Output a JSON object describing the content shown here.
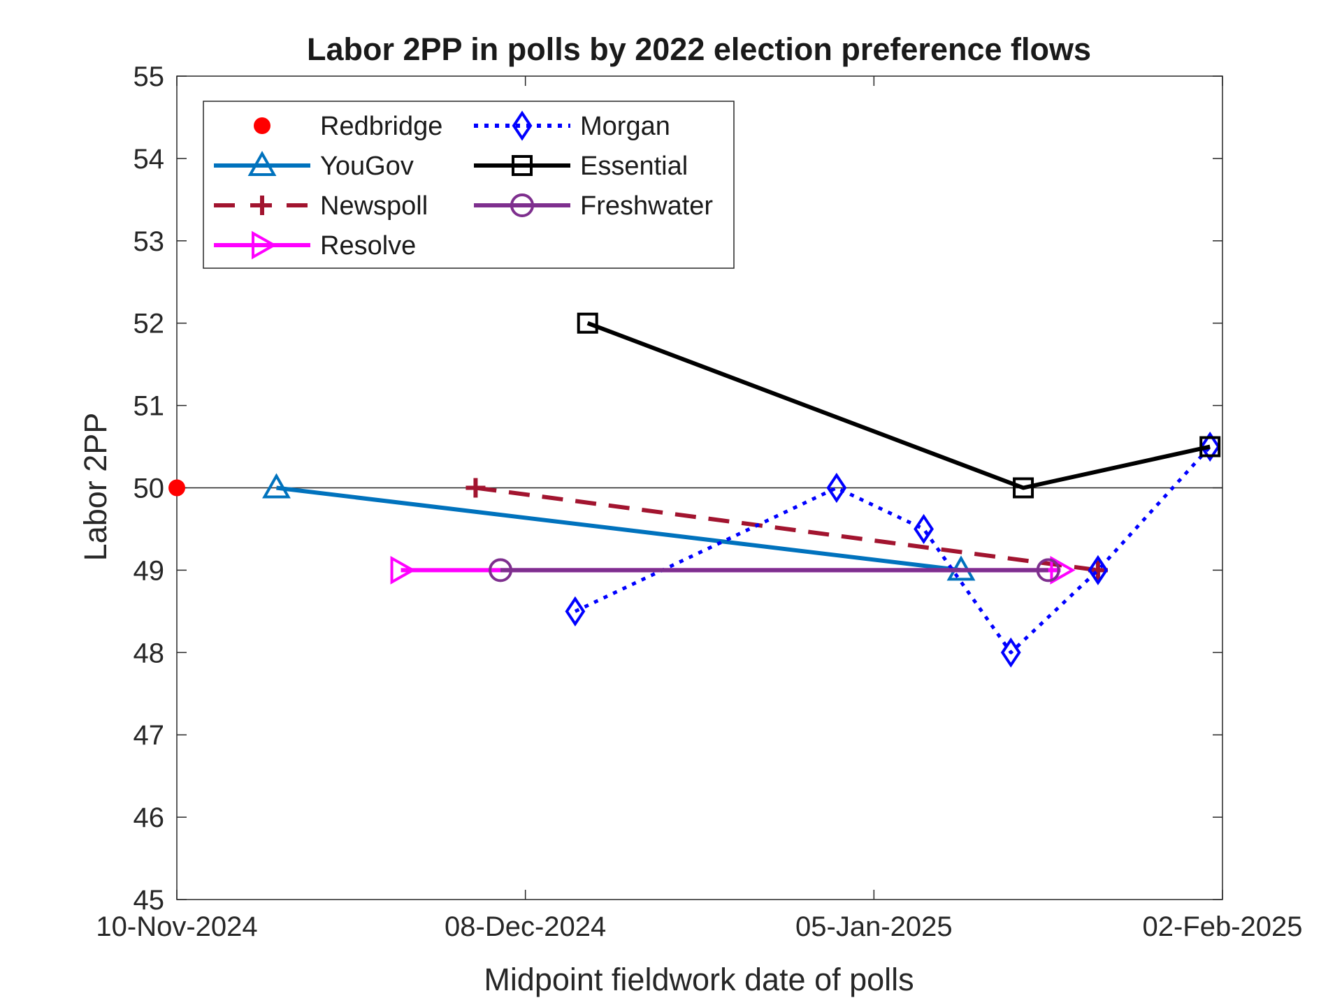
{
  "chart_data": {
    "type": "line",
    "title": "Labor 2PP in polls by 2022 election preference flows",
    "xlabel": "Midpoint fieldwork date of polls",
    "ylabel": "Labor 2PP",
    "xlim": [
      "2024-11-10",
      "2025-02-02"
    ],
    "ylim": [
      45,
      55
    ],
    "x_ticks": [
      "2024-11-10",
      "2024-12-08",
      "2025-01-05",
      "2025-02-02"
    ],
    "x_tick_labels": [
      "10-Nov-2024",
      "08-Dec-2024",
      "05-Jan-2025",
      "02-Feb-2025"
    ],
    "y_ticks": [
      45,
      46,
      47,
      48,
      49,
      50,
      51,
      52,
      53,
      54,
      55
    ],
    "y_tick_labels": [
      "45",
      "46",
      "47",
      "48",
      "49",
      "50",
      "51",
      "52",
      "53",
      "54",
      "55"
    ],
    "reference_line": 50,
    "grid": false,
    "legend_position": "top-left",
    "series": [
      {
        "name": "Redbridge",
        "color": "#ff0000",
        "line": "none",
        "marker": "circle-filled",
        "points": [
          {
            "x": "2024-11-10",
            "y": 50
          }
        ]
      },
      {
        "name": "YouGov",
        "color": "#0072bd",
        "line": "solid",
        "marker": "triangle-up",
        "points": [
          {
            "x": "2024-11-18",
            "y": 50
          },
          {
            "x": "2025-01-12",
            "y": 49
          }
        ]
      },
      {
        "name": "Newspoll",
        "color": "#a2142f",
        "line": "dashed",
        "marker": "plus",
        "points": [
          {
            "x": "2024-12-04",
            "y": 50
          },
          {
            "x": "2025-01-23",
            "y": 49
          }
        ]
      },
      {
        "name": "Resolve",
        "color": "#ff00ff",
        "line": "solid",
        "marker": "triangle-right",
        "points": [
          {
            "x": "2024-11-28",
            "y": 49
          },
          {
            "x": "2025-01-20",
            "y": 49
          }
        ]
      },
      {
        "name": "Morgan",
        "color": "#0000ff",
        "line": "dotted",
        "marker": "diamond",
        "points": [
          {
            "x": "2024-12-12",
            "y": 48.5
          },
          {
            "x": "2025-01-02",
            "y": 50
          },
          {
            "x": "2025-01-09",
            "y": 49.5
          },
          {
            "x": "2025-01-16",
            "y": 48
          },
          {
            "x": "2025-01-23",
            "y": 49
          },
          {
            "x": "2025-02-01",
            "y": 50.5
          }
        ]
      },
      {
        "name": "Essential",
        "color": "#000000",
        "line": "solid",
        "marker": "square",
        "points": [
          {
            "x": "2024-12-13",
            "y": 52
          },
          {
            "x": "2025-01-17",
            "y": 50
          },
          {
            "x": "2025-02-01",
            "y": 50.5
          }
        ]
      },
      {
        "name": "Freshwater",
        "color": "#7e2f8e",
        "line": "solid",
        "marker": "circle",
        "points": [
          {
            "x": "2024-12-06",
            "y": 49
          },
          {
            "x": "2025-01-19",
            "y": 49
          }
        ]
      }
    ]
  }
}
